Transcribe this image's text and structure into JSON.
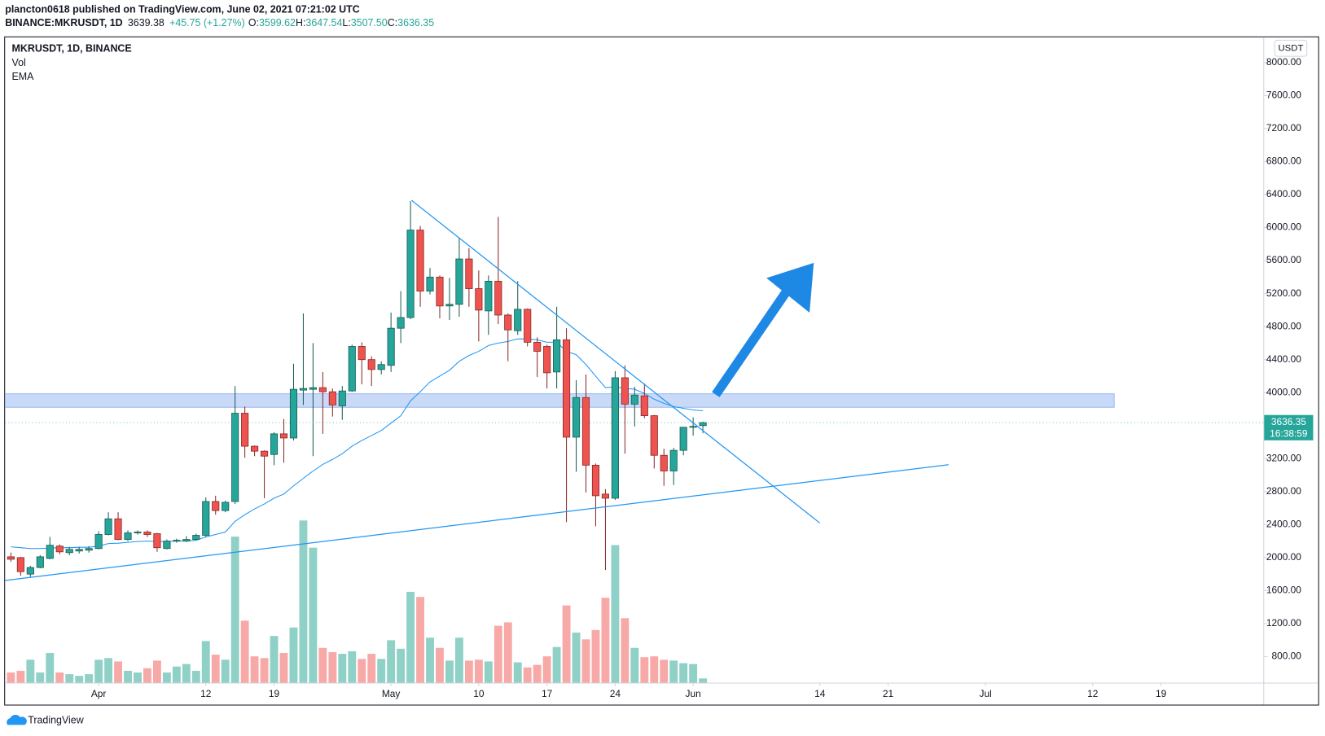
{
  "header": {
    "publisher": "plancton0618 published on TradingView.com, June 02, 2021 07:21:02 UTC",
    "symbol": "BINANCE:MKRUSDT, 1D",
    "last": "3639.38",
    "change": "+45.75 (+1.27%)",
    "ohlc": [
      {
        "key": "O:",
        "value": "3599.62"
      },
      {
        "key": "H:",
        "value": "3647.54"
      },
      {
        "key": "L:",
        "value": "3507.50"
      },
      {
        "key": "C:",
        "value": "3636.35"
      }
    ]
  },
  "chart_data": {
    "type": "candlestick",
    "title": "MKRUSDT, 1D, BINANCE",
    "indicators": [
      "Vol",
      "EMA"
    ],
    "y_unit": "USDT",
    "x": [
      -9,
      -8,
      -7,
      -6,
      -5,
      -4,
      -3,
      -2,
      -1,
      0,
      1,
      2,
      3,
      4,
      5,
      6,
      7,
      8,
      9,
      10,
      11,
      12,
      13,
      14,
      15,
      16,
      17,
      18,
      19,
      20,
      21,
      22,
      23,
      24,
      25,
      26,
      27,
      28,
      29,
      30,
      31,
      32,
      33,
      34,
      35,
      36,
      37,
      38,
      39,
      40,
      41,
      42,
      43,
      44,
      45,
      46,
      47,
      48,
      49,
      50,
      51,
      52,
      53,
      54,
      55,
      56,
      57,
      58,
      59,
      60,
      61,
      62
    ],
    "open": [
      2010,
      2000,
      1800,
      1880,
      1990,
      2140,
      2060,
      2080,
      2090,
      2110,
      2280,
      2470,
      2220,
      2300,
      2310,
      2290,
      2110,
      2200,
      2200,
      2220,
      2270,
      2680,
      2570,
      2680,
      3750,
      3350,
      3290,
      3250,
      3500,
      3450,
      4030,
      4040,
      4060,
      4010,
      3840,
      4020,
      4560,
      4400,
      4280,
      4330,
      4780,
      4910,
      5970,
      5230,
      5400,
      5050,
      5070,
      5620,
      5260,
      4990,
      5350,
      4940,
      4750,
      5010,
      4610,
      4560,
      4250,
      4640,
      3460,
      3940,
      3120,
      2770,
      2720,
      4180,
      3860,
      3960,
      3720,
      3240,
      3050,
      3300,
      3580,
      3599.62
    ],
    "high": [
      2060,
      2010,
      1900,
      2030,
      2250,
      2160,
      2130,
      2130,
      2140,
      2320,
      2550,
      2550,
      2330,
      2330,
      2330,
      2300,
      2220,
      2230,
      2260,
      2290,
      2730,
      2750,
      2690,
      4080,
      3830,
      3360,
      3300,
      3520,
      3680,
      4350,
      4960,
      4600,
      4250,
      4050,
      4080,
      4580,
      4610,
      4440,
      4380,
      4970,
      5230,
      6320,
      6020,
      5510,
      5420,
      5390,
      5870,
      5750,
      5480,
      5420,
      6130,
      4960,
      5350,
      5020,
      4670,
      4580,
      5040,
      4780,
      4150,
      4220,
      3140,
      2830,
      4260,
      4330,
      4070,
      4110,
      3730,
      3320,
      3330,
      3580,
      3700,
      3647.54
    ],
    "low": [
      1950,
      1780,
      1760,
      1870,
      1980,
      2040,
      2030,
      2050,
      2060,
      2100,
      2270,
      2210,
      2200,
      2280,
      2250,
      2070,
      2100,
      2180,
      2190,
      2210,
      2250,
      2520,
      2550,
      2650,
      3210,
      3230,
      2720,
      3120,
      3150,
      3420,
      3850,
      3230,
      3500,
      3710,
      3670,
      4010,
      4100,
      4080,
      4220,
      4250,
      4600,
      4890,
      5040,
      5190,
      4900,
      4880,
      4920,
      5040,
      4620,
      4700,
      4830,
      4380,
      4700,
      4560,
      4190,
      4050,
      4050,
      2430,
      3040,
      2790,
      2380,
      1850,
      2700,
      3260,
      3590,
      3690,
      3080,
      2870,
      2880,
      3240,
      3480,
      3507.5
    ],
    "close": [
      1980,
      1830,
      1880,
      2010,
      2150,
      2070,
      2100,
      2100,
      2110,
      2280,
      2470,
      2220,
      2300,
      2310,
      2280,
      2120,
      2200,
      2210,
      2220,
      2270,
      2680,
      2570,
      2670,
      3750,
      3350,
      3290,
      3230,
      3500,
      3450,
      4040,
      4050,
      4060,
      4010,
      3850,
      4020,
      4560,
      4400,
      4280,
      4340,
      4780,
      4910,
      5970,
      5230,
      5400,
      5050,
      5070,
      5620,
      5260,
      5000,
      5350,
      4940,
      4760,
      5010,
      4610,
      4500,
      4240,
      4640,
      3460,
      3940,
      3120,
      2750,
      2720,
      4180,
      3860,
      3970,
      3720,
      3240,
      3050,
      3300,
      3580,
      3590,
      3636.35
    ],
    "volume": [
      12,
      14,
      27,
      12,
      35,
      12,
      10,
      8,
      10,
      27,
      29,
      25,
      14,
      12,
      17,
      26,
      12,
      19,
      22,
      14,
      49,
      33,
      27,
      172,
      73,
      31,
      29,
      55,
      35,
      65,
      191,
      159,
      41,
      36,
      34,
      37,
      28,
      34,
      28,
      50,
      40,
      107,
      101,
      53,
      41,
      26,
      53,
      26,
      27,
      25,
      67,
      71,
      24,
      18,
      21,
      31,
      42,
      91,
      59,
      51,
      62,
      100,
      162,
      76,
      41,
      30,
      31,
      27,
      26,
      23,
      22,
      5
    ],
    "ema": [
      2130,
      2120,
      2110,
      2110,
      2115,
      2120,
      2120,
      2125,
      2125,
      2140,
      2170,
      2175,
      2185,
      2195,
      2200,
      2195,
      2195,
      2200,
      2200,
      2210,
      2250,
      2280,
      2310,
      2440,
      2520,
      2590,
      2650,
      2720,
      2770,
      2870,
      2960,
      3050,
      3130,
      3190,
      3260,
      3350,
      3420,
      3480,
      3540,
      3630,
      3720,
      3900,
      4010,
      4130,
      4200,
      4270,
      4380,
      4450,
      4500,
      4570,
      4600,
      4620,
      4650,
      4650,
      4640,
      4610,
      4610,
      4500,
      4460,
      4340,
      4200,
      4060,
      4070,
      4050,
      4040,
      3990,
      3920,
      3870,
      3830,
      3810,
      3790,
      3780
    ],
    "up_color": "#26a69a",
    "down_color": "#ef5350",
    "up_volume_color": "#8fd0c7",
    "down_volume_color": "#f7a9a7",
    "ema_color": "#2196f3",
    "xlim": [
      -9.6,
      119.5
    ],
    "ylim": [
      484,
      8317
    ],
    "xticks": [
      {
        "value": 0,
        "label": "Apr"
      },
      {
        "value": 11,
        "label": "12"
      },
      {
        "value": 18,
        "label": "19"
      },
      {
        "value": 30,
        "label": "May"
      },
      {
        "value": 39,
        "label": "10"
      },
      {
        "value": 46,
        "label": "17"
      },
      {
        "value": 53,
        "label": "24"
      },
      {
        "value": 61,
        "label": "Jun"
      },
      {
        "value": 74,
        "label": "14"
      },
      {
        "value": 81,
        "label": "21"
      },
      {
        "value": 91,
        "label": "Jul"
      },
      {
        "value": 102,
        "label": "12"
      },
      {
        "value": 109,
        "label": "19"
      }
    ],
    "yticks": [
      {
        "value": 800,
        "label": "800.00"
      },
      {
        "value": 1200,
        "label": "1200.00"
      },
      {
        "value": 1600,
        "label": "1600.00"
      },
      {
        "value": 2000,
        "label": "2000.00"
      },
      {
        "value": 2400,
        "label": "2400.00"
      },
      {
        "value": 2800,
        "label": "2800.00"
      },
      {
        "value": 3200,
        "label": "3200.00"
      },
      {
        "value": 3600,
        "label": "3600.00"
      },
      {
        "value": 4000,
        "label": "4000.00"
      },
      {
        "value": 4400,
        "label": "4400.00"
      },
      {
        "value": 4800,
        "label": "4800.00"
      },
      {
        "value": 5200,
        "label": "5200.00"
      },
      {
        "value": 5600,
        "label": "5600.00"
      },
      {
        "value": 6000,
        "label": "6000.00"
      },
      {
        "value": 6400,
        "label": "6400.00"
      },
      {
        "value": 6800,
        "label": "6800.00"
      },
      {
        "value": 7200,
        "label": "7200.00"
      },
      {
        "value": 7600,
        "label": "7600.00"
      },
      {
        "value": 8000,
        "label": "8000.00"
      }
    ],
    "zone": {
      "xlim": [
        -9.6,
        104.2
      ],
      "ylim": [
        3822,
        3986
      ],
      "color": "#b7cdf7"
    },
    "trendlines": [
      {
        "x": [
          32.1,
          74.0
        ],
        "y": [
          6331,
          2419
        ],
        "color": "#2196f3"
      },
      {
        "x": [
          -9.6,
          87.2
        ],
        "y": [
          1723,
          3126
        ],
        "color": "#2196f3"
      }
    ],
    "last_price": {
      "value": 3636.35,
      "countdown": "16:38:59"
    }
  },
  "footer": {
    "brand": "TradingView"
  }
}
